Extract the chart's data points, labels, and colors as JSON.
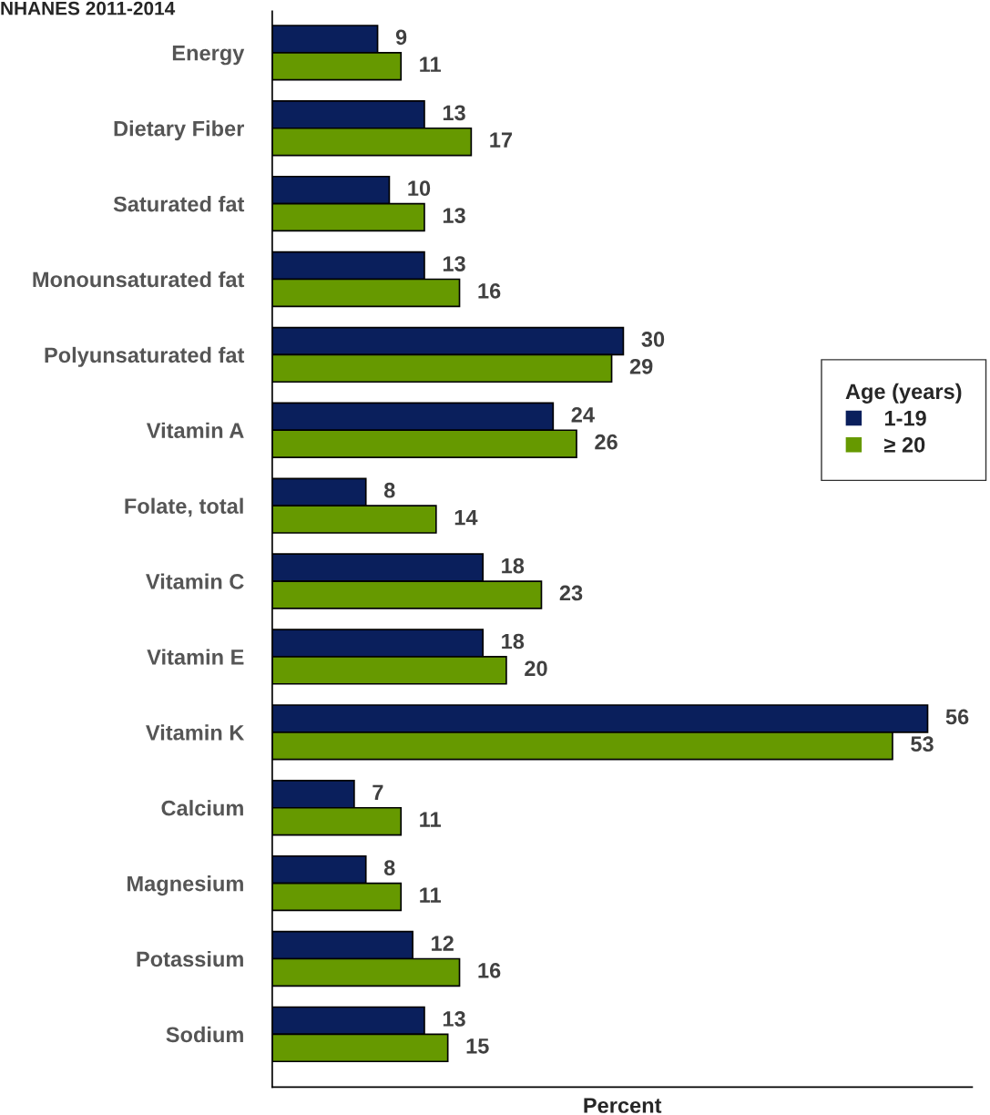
{
  "chart_data": {
    "type": "bar",
    "orientation": "horizontal",
    "title": "NHANES 2011-2014",
    "xlabel": "Percent",
    "legend_title": "Age (years)",
    "legend": "right",
    "data_labels": true,
    "grid": false,
    "categories": [
      "Energy",
      "Dietary Fiber",
      "Saturated fat",
      "Monounsaturated fat",
      "Polyunsaturated fat",
      "Vitamin A",
      "Folate, total",
      "Vitamin C",
      "Vitamin E",
      "Vitamin K",
      "Calcium",
      "Magnesium",
      "Potassium",
      "Sodium"
    ],
    "series": [
      {
        "name": "1-19",
        "color": "#0a1f5c",
        "values": [
          9,
          13,
          10,
          13,
          30,
          24,
          8,
          18,
          18,
          56,
          7,
          8,
          12,
          13
        ]
      },
      {
        "name": "≥ 20",
        "color": "#669900",
        "values": [
          11,
          17,
          13,
          16,
          29,
          26,
          14,
          23,
          20,
          53,
          11,
          11,
          16,
          15
        ]
      }
    ]
  }
}
